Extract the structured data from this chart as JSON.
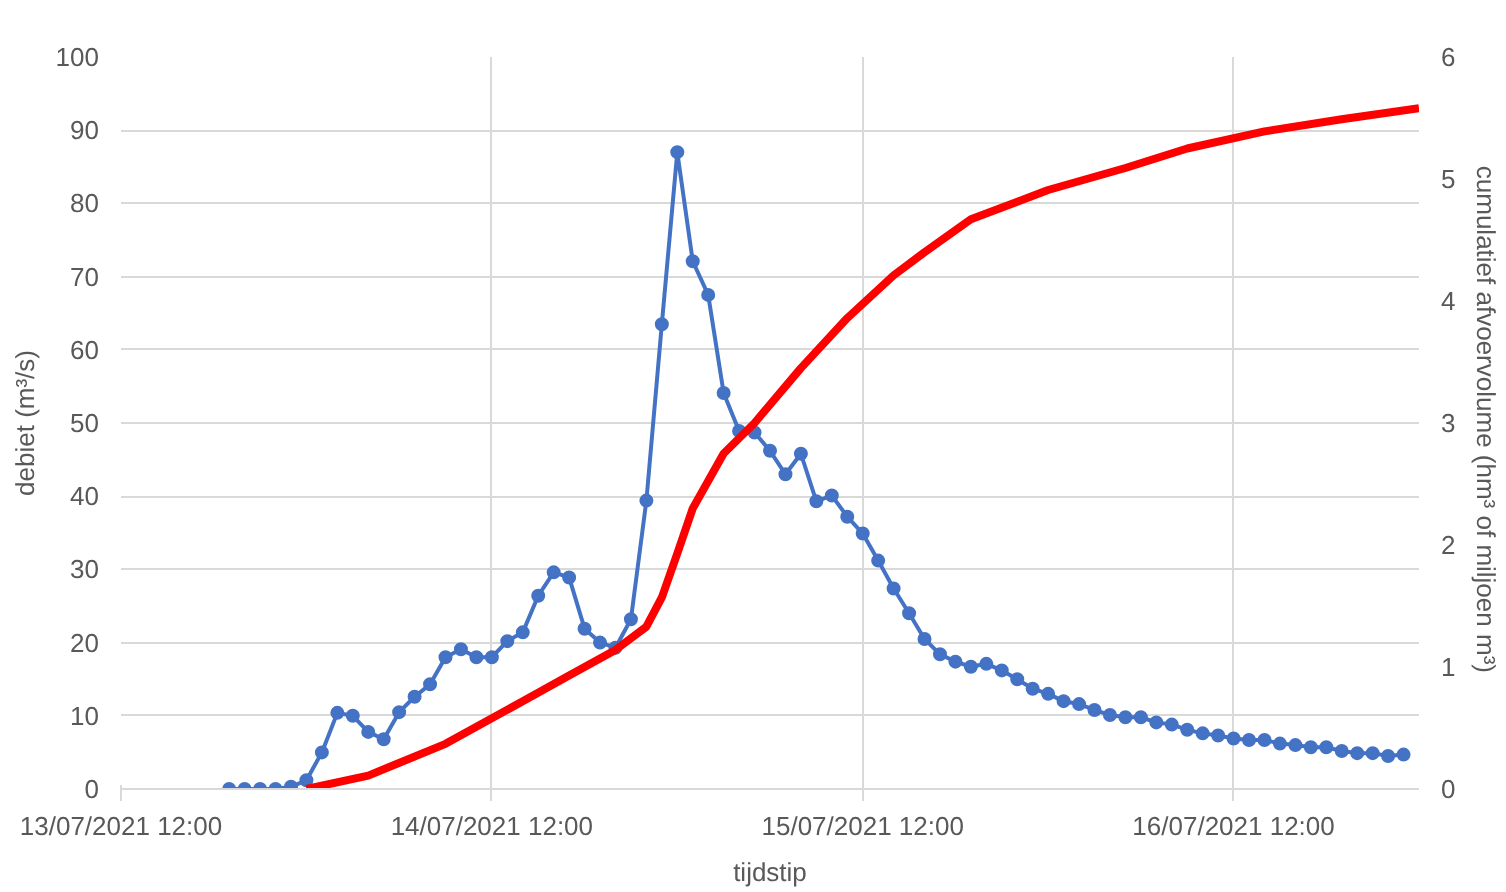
{
  "chart_data": {
    "type": "line",
    "xlabel": "tijdstip",
    "ylabel": "debiet (m³/s)",
    "y2label": "cumulatief afvoervolume  (hm³ of miljoen m³)",
    "xlim": [
      "2021-07-13T12:00",
      "2021-07-17T00:00"
    ],
    "xticks": [
      {
        "value": "2021-07-13T12:00",
        "label": "13/07/2021 12:00"
      },
      {
        "value": "2021-07-14T12:00",
        "label": "14/07/2021 12:00"
      },
      {
        "value": "2021-07-15T12:00",
        "label": "15/07/2021 12:00"
      },
      {
        "value": "2021-07-16T12:00",
        "label": "16/07/2021 12:00"
      }
    ],
    "ylim": [
      0,
      100
    ],
    "yticks": [
      0,
      10,
      20,
      30,
      40,
      50,
      60,
      70,
      80,
      90,
      100
    ],
    "y2lim": [
      0,
      6
    ],
    "y2ticks": [
      0,
      1,
      2,
      3,
      4,
      5,
      6
    ],
    "grid": true,
    "series": [
      {
        "color": "#4472c4",
        "marker": "circle",
        "x": [
          "2021-07-13T19:00",
          "2021-07-13T20:00",
          "2021-07-13T21:00",
          "2021-07-13T22:00",
          "2021-07-13T23:00",
          "2021-07-14T00:00",
          "2021-07-14T01:00",
          "2021-07-14T02:00",
          "2021-07-14T03:00",
          "2021-07-14T04:00",
          "2021-07-14T05:00",
          "2021-07-14T06:00",
          "2021-07-14T07:00",
          "2021-07-14T08:00",
          "2021-07-14T09:00",
          "2021-07-14T10:00",
          "2021-07-14T11:00",
          "2021-07-14T12:00",
          "2021-07-14T13:00",
          "2021-07-14T14:00",
          "2021-07-14T15:00",
          "2021-07-14T16:00",
          "2021-07-14T17:00",
          "2021-07-14T18:00",
          "2021-07-14T19:00",
          "2021-07-14T20:00",
          "2021-07-14T21:00",
          "2021-07-14T22:00",
          "2021-07-14T23:00",
          "2021-07-15T00:00",
          "2021-07-15T01:00",
          "2021-07-15T02:00",
          "2021-07-15T03:00",
          "2021-07-15T04:00",
          "2021-07-15T05:00",
          "2021-07-15T06:00",
          "2021-07-15T07:00",
          "2021-07-15T08:00",
          "2021-07-15T09:00",
          "2021-07-15T10:00",
          "2021-07-15T11:00",
          "2021-07-15T12:00",
          "2021-07-15T13:00",
          "2021-07-15T14:00",
          "2021-07-15T15:00",
          "2021-07-15T16:00",
          "2021-07-15T17:00",
          "2021-07-15T18:00",
          "2021-07-15T19:00",
          "2021-07-15T20:00",
          "2021-07-15T21:00",
          "2021-07-15T22:00",
          "2021-07-15T23:00",
          "2021-07-16T00:00",
          "2021-07-16T01:00",
          "2021-07-16T02:00",
          "2021-07-16T03:00",
          "2021-07-16T04:00",
          "2021-07-16T05:00",
          "2021-07-16T06:00",
          "2021-07-16T07:00",
          "2021-07-16T08:00",
          "2021-07-16T09:00",
          "2021-07-16T10:00",
          "2021-07-16T11:00",
          "2021-07-16T12:00",
          "2021-07-16T13:00",
          "2021-07-16T14:00",
          "2021-07-16T15:00",
          "2021-07-16T16:00",
          "2021-07-16T17:00",
          "2021-07-16T18:00",
          "2021-07-16T19:00",
          "2021-07-16T20:00",
          "2021-07-16T21:00",
          "2021-07-16T22:00",
          "2021-07-16T23:00"
        ],
        "values": [
          0,
          0,
          0,
          0,
          0.3,
          1.2,
          5,
          10.4,
          10,
          7.8,
          6.8,
          10.5,
          12.6,
          14.3,
          18,
          19.1,
          18,
          18,
          20.2,
          21.4,
          26.4,
          29.6,
          28.9,
          21.9,
          20,
          19.3,
          23.2,
          39.4,
          63.5,
          87,
          72.1,
          67.5,
          54.1,
          48.9,
          48.7,
          46.2,
          43,
          45.8,
          39.3,
          40.1,
          37.2,
          34.9,
          31.2,
          27.4,
          24,
          20.5,
          18.4,
          17.4,
          16.7,
          17.1,
          16.2,
          15,
          13.7,
          13,
          12,
          11.6,
          10.8,
          10.1,
          9.8,
          9.8,
          9.1,
          8.8,
          8.1,
          7.6,
          7.3,
          6.9,
          6.7,
          6.7,
          6.2,
          6,
          5.7,
          5.7,
          5.2,
          4.9,
          4.9,
          4.5,
          4.7
        ]
      },
      {
        "color": "#ff0000",
        "axis": "y2",
        "marker": "none",
        "x": [
          "2021-07-14T00:00",
          "2021-07-14T04:00",
          "2021-07-14T09:00",
          "2021-07-14T14:00",
          "2021-07-14T17:00",
          "2021-07-14T20:00",
          "2021-07-14T22:00",
          "2021-07-14T23:00",
          "2021-07-15T00:00",
          "2021-07-15T01:00",
          "2021-07-15T03:00",
          "2021-07-15T05:00",
          "2021-07-15T08:00",
          "2021-07-15T11:00",
          "2021-07-15T14:00",
          "2021-07-15T16:00",
          "2021-07-15T19:00",
          "2021-07-16T00:00",
          "2021-07-16T05:00",
          "2021-07-16T09:00",
          "2021-07-16T14:00",
          "2021-07-16T19:00",
          "2021-07-17T00:00"
        ],
        "values": [
          0,
          0.11,
          0.37,
          0.72,
          0.93,
          1.14,
          1.33,
          1.57,
          1.93,
          2.3,
          2.75,
          3.0,
          3.45,
          3.86,
          4.21,
          4.4,
          4.67,
          4.91,
          5.09,
          5.25,
          5.39,
          5.49,
          5.58
        ]
      }
    ]
  }
}
